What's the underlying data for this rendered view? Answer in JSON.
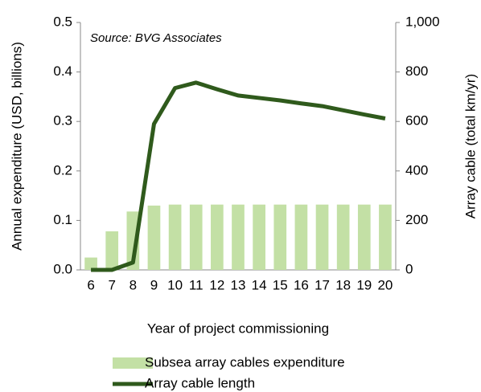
{
  "chart_data": {
    "type": "bar-line",
    "annotation": "Source: BVG Associates",
    "x_label": "Year of project commissioning",
    "y_label": "Annual expenditure (USD, billions)",
    "y2_label": "Array cable (total km/yr)",
    "categories": [
      "6",
      "7",
      "8",
      "9",
      "10",
      "11",
      "12",
      "13",
      "14",
      "15",
      "16",
      "17",
      "18",
      "19",
      "20"
    ],
    "series": [
      {
        "name": "Subsea array cables expenditure",
        "type": "bar",
        "color": "#c3e0a5",
        "axis": "y",
        "values": [
          0.025,
          0.078,
          0.118,
          0.13,
          0.132,
          0.132,
          0.132,
          0.132,
          0.132,
          0.132,
          0.132,
          0.132,
          0.132,
          0.132,
          0.132
        ]
      },
      {
        "name": "Array cable length",
        "type": "line",
        "color": "#2f5a1c",
        "axis": "y2",
        "values": [
          0,
          0,
          30,
          590,
          735,
          757,
          730,
          705,
          695,
          685,
          673,
          662,
          645,
          628,
          612
        ]
      }
    ],
    "ylim": [
      0,
      0.5
    ],
    "yticks": [
      {
        "value": 0,
        "label": "0.0"
      },
      0.1,
      0.2,
      0.3,
      0.4,
      0.5
    ],
    "y2lim": [
      0,
      1000
    ],
    "y2ticks": [
      0,
      200,
      400,
      600,
      800,
      {
        "value": 1000,
        "label": "1,000"
      }
    ],
    "grid": false,
    "legend": "bottom"
  }
}
